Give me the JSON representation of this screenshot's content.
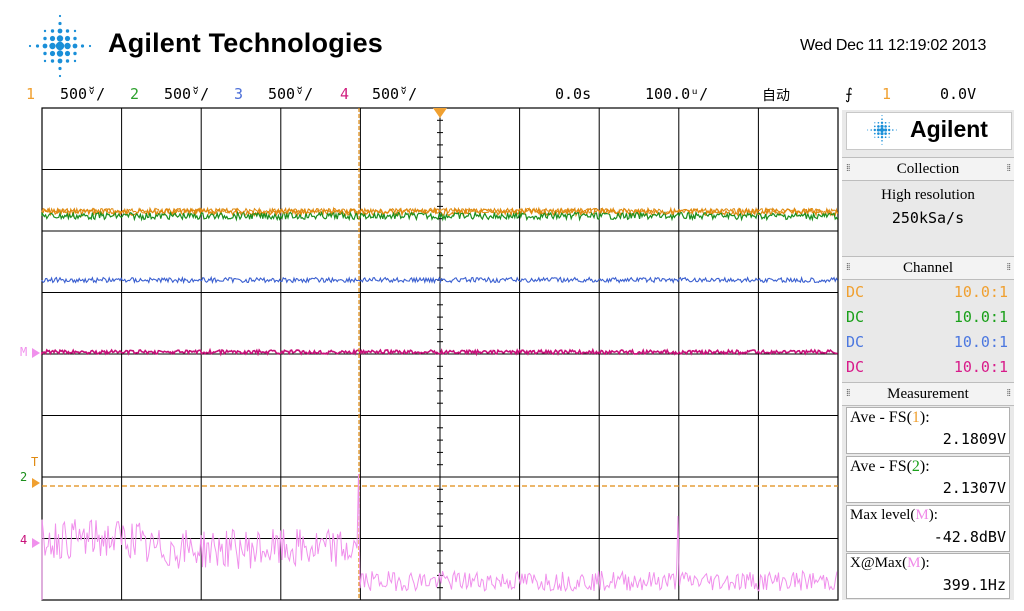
{
  "header": {
    "brand": "Agilent Technologies",
    "datetime": "Wed Dec 11 12:19:02 2013"
  },
  "statusbar": {
    "channels": [
      {
        "num": "1",
        "scale": "500̆ᵛ/",
        "color": "#f0a030"
      },
      {
        "num": "2",
        "scale": "500̆ᵛ/",
        "color": "#2ca02c"
      },
      {
        "num": "3",
        "scale": "500̆ᵛ/",
        "color": "#4c6fd8"
      },
      {
        "num": "4",
        "scale": "500̆ᵛ/",
        "color": "#d02080"
      }
    ],
    "delay": "0.0s",
    "timebase": "100.0ᵘ/",
    "mode": "自动",
    "trigger_channel": "1",
    "trigger_level": "0.0V"
  },
  "side": {
    "brand": "Agilent",
    "collection": {
      "title": "Collection",
      "mode": "High resolution",
      "rate": "250kSa/s"
    },
    "channel": {
      "title": "Channel",
      "rows": [
        {
          "coupling": "DC",
          "probe": "10.0:1",
          "color": "#f0a030"
        },
        {
          "coupling": "DC",
          "probe": "10.0:1",
          "color": "#1aa01a"
        },
        {
          "coupling": "DC",
          "probe": "10.0:1",
          "color": "#4c78e0"
        },
        {
          "coupling": "DC",
          "probe": "10.0:1",
          "color": "#d81b8a"
        }
      ]
    },
    "measurement": {
      "title": "Measurement",
      "items": [
        {
          "label_pre": "Ave - FS(",
          "label_src": "1",
          "label_post": "):",
          "src_color": "#f0a030",
          "value": "2.1809V"
        },
        {
          "label_pre": "Ave - FS(",
          "label_src": "2",
          "label_post": "):",
          "src_color": "#1aa01a",
          "value": "2.1307V"
        },
        {
          "label_pre": "Max level(",
          "label_src": "M",
          "label_post": "):",
          "src_color": "#f08ae8",
          "value": "-42.8dBV"
        },
        {
          "label_pre": "X@Max(",
          "label_src": "M",
          "label_post": "):",
          "src_color": "#f08ae8",
          "value": "399.1Hz"
        }
      ]
    }
  },
  "markers": {
    "math": "M",
    "ch2": "2",
    "ch4": "4",
    "trigger": "T"
  },
  "colors": {
    "ch1": "#e08a10",
    "ch2": "#1c8f1c",
    "ch3": "#3a5fd0",
    "ch4": "#c8107a",
    "math": "#f090ec"
  }
}
